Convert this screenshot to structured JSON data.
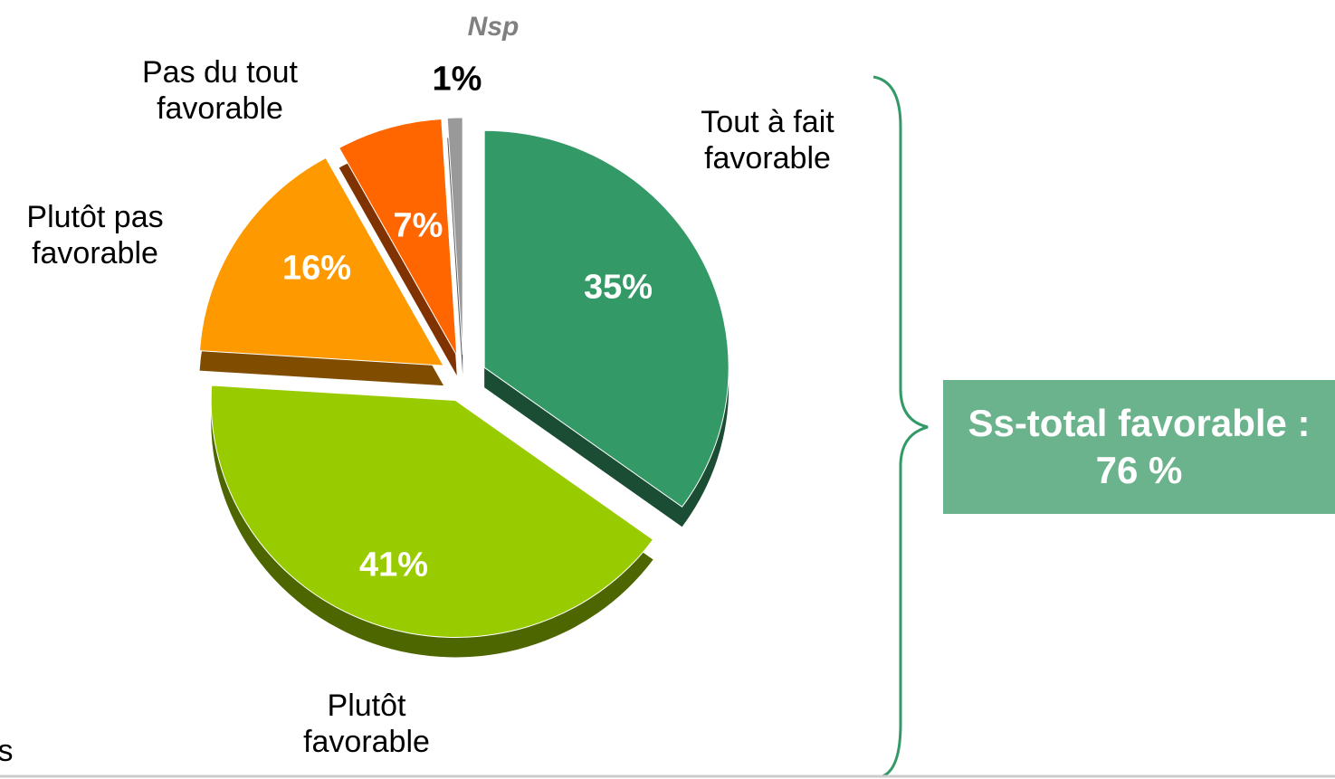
{
  "chart_data": {
    "type": "pie",
    "categories": [
      "Tout à fait favorable",
      "Plutôt favorable",
      "Plutôt pas favorable",
      "Pas du tout favorable",
      "Nsp"
    ],
    "values": [
      35,
      41,
      16,
      7,
      1
    ],
    "value_labels": [
      "35%",
      "41%",
      "16%",
      "7%",
      "1%"
    ],
    "colors": [
      "#339966",
      "#99cc00",
      "#ff9900",
      "#ff6600",
      "#999999"
    ],
    "annotations": [
      "Ss-total favorable : 76 %",
      "s"
    ]
  }
}
